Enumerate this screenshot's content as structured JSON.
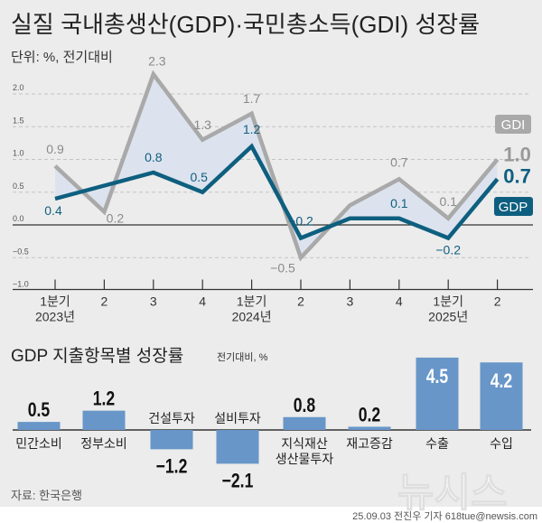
{
  "title": "실질 국내총생산(GDP)·국민총소득(GDI) 성장률",
  "unit": "단위: %, 전기대비",
  "source": "자료: 한국은행",
  "credit": "25.09.03 전진우 기자 618tue@newsis.com",
  "watermark": "뉴시스",
  "colors": {
    "gdp": "#0e5f7f",
    "gdi": "#a9a9a9",
    "fill": "#dce3ee",
    "bar": "#6896c8",
    "background": "#ececec"
  },
  "chart_data": [
    {
      "type": "line",
      "title": "실질 국내총생산(GDP)·국민총소득(GDI) 성장률",
      "ylabel": "단위: %, 전기대비",
      "ylim": [
        -1.0,
        2.3
      ],
      "yticks": [
        "2.0",
        "1.5",
        "1.0",
        "0.5",
        "0.0",
        "−0.5",
        "−1.0"
      ],
      "ytick_values": [
        2.0,
        1.5,
        1.0,
        0.5,
        0.0,
        -0.5,
        -1.0
      ],
      "grid": true,
      "categories": [
        "1분기",
        "2",
        "3",
        "4",
        "1분기",
        "2",
        "3",
        "4",
        "1분기",
        "2"
      ],
      "year_labels": [
        "2023년",
        "2024년",
        "2025년"
      ],
      "year_label_index": [
        0,
        4,
        8
      ],
      "series": [
        {
          "name": "GDI",
          "values": [
            0.9,
            0.2,
            2.3,
            1.3,
            1.7,
            -0.5,
            0.3,
            0.7,
            0.1,
            1.0
          ],
          "labels": [
            "0.9",
            "0.2",
            "2.3",
            "1.3",
            "1.7",
            "−0.5",
            "",
            "0.7",
            "0.1",
            "1.0"
          ]
        },
        {
          "name": "GDP",
          "values": [
            0.4,
            0.6,
            0.8,
            0.5,
            1.2,
            -0.2,
            0.1,
            0.1,
            -0.2,
            0.7
          ],
          "labels": [
            "0.4",
            "",
            "0.8",
            "0.5",
            "1.2",
            "−0.2",
            "",
            "0.1",
            "−0.2",
            "0.7"
          ]
        }
      ],
      "legend_placement": "right"
    },
    {
      "type": "bar",
      "title": "GDP 지출항목별 성장률",
      "subtitle": "전기대비, %",
      "categories": [
        "민간소비",
        "정부소비",
        "건설투자",
        "설비투자",
        "지식재산 생산물투자",
        "재고증감",
        "수출",
        "수입"
      ],
      "values": [
        0.5,
        1.2,
        -1.2,
        -2.1,
        0.8,
        0.2,
        4.5,
        4.2
      ],
      "labels": [
        "0.5",
        "1.2",
        "−1.2",
        "−2.1",
        "0.8",
        "0.2",
        "4.5",
        "4.2"
      ]
    }
  ]
}
